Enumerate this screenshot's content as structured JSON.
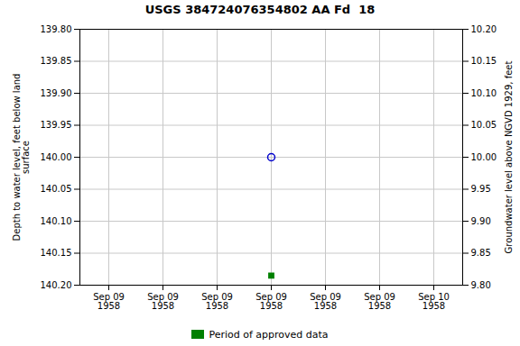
{
  "chart_data": {
    "type": "scatter",
    "title": "USGS 384724076354802 AA Fd  18",
    "y_label": "Depth to water level, feet below land\nsurface",
    "y2_label": "Groundwater level above NGVD 1929, feet",
    "categories": [
      "Sep 09\n1958",
      "Sep 09\n1958",
      "Sep 09\n1958",
      "Sep 09\n1958",
      "Sep 09\n1958",
      "Sep 09\n1958",
      "Sep 10\n1958"
    ],
    "series": [
      {
        "color": "#0000cc",
        "marker": "circle_open",
        "values": [
          null,
          null,
          null,
          140.0,
          null,
          null,
          null
        ]
      },
      {
        "name": "Period of approved data",
        "color": "#008000",
        "marker": "square",
        "values": [
          null,
          null,
          null,
          140.185,
          null,
          null,
          null
        ]
      }
    ],
    "ylim": [
      140.2,
      139.8
    ],
    "yticks": [
      {
        "value": 139.8,
        "label": "139.80"
      },
      139.85,
      {
        "value": 139.9,
        "label": "139.90"
      },
      139.95,
      {
        "value": 140.0,
        "label": "140.00"
      },
      140.05,
      {
        "value": 140.1,
        "label": "140.10"
      },
      140.15,
      {
        "value": 140.2,
        "label": "140.20"
      }
    ],
    "y2lim": [
      9.8,
      10.2
    ],
    "y2ticks": [
      {
        "value": 10.2,
        "label": "10.20"
      },
      10.15,
      {
        "value": 10.1,
        "label": "10.10"
      },
      10.05,
      {
        "value": 10.0,
        "label": "10.00"
      },
      9.95,
      {
        "value": 9.9,
        "label": "9.90"
      },
      9.85,
      {
        "value": 9.8,
        "label": "9.80"
      }
    ],
    "grid": true,
    "legend": "bottom"
  }
}
